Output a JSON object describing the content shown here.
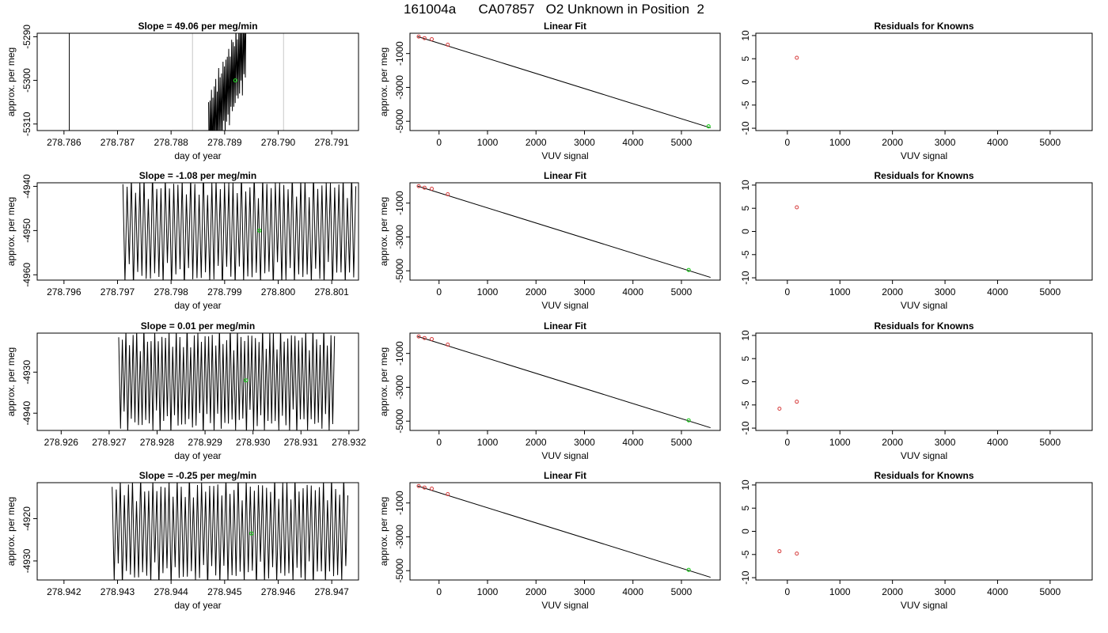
{
  "figure": {
    "title": "161004a      CA07857   O2 Unknown in Position  2",
    "colors": {
      "trace": "#000000",
      "grid_vline": "#c8c8c8",
      "known_point": "#d63c3c",
      "unknown_point": "#22cc22",
      "frame": "#000000"
    }
  },
  "chart_data": [
    {
      "type": "line",
      "title": "Slope =  49.06  per meg/min",
      "xlabel": "day of year",
      "ylabel": "approx. per meg",
      "xlim": [
        278.7855,
        278.7915
      ],
      "ylim": [
        -5311.5,
        -5289.2
      ],
      "xticks": [
        278.786,
        278.787,
        278.788,
        278.789,
        278.79,
        278.791
      ],
      "xtick_labels": [
        "278.786",
        "278.787",
        "278.788",
        "278.789",
        "278.790",
        "278.791"
      ],
      "yticks": [
        -5310,
        -5300,
        -5290
      ],
      "ytick_labels": [
        "-5310",
        "-5300",
        "-5290"
      ],
      "vlines_black": [
        278.7861
      ],
      "vlines_gray": [
        278.7884,
        278.7901
      ],
      "signal": {
        "x_start": 278.7887,
        "x_end": 278.7894,
        "center": -5302,
        "amp": 10,
        "cycles": 26,
        "slope": 30000
      },
      "marker": {
        "x": 278.7892,
        "y": -5300
      }
    },
    {
      "type": "scatter",
      "title": "Linear Fit",
      "xlabel": "VUV signal",
      "ylabel": "approx. per meg",
      "xlim": [
        -600,
        5800
      ],
      "ylim": [
        -5550,
        200
      ],
      "xticks": [
        0,
        1000,
        2000,
        3000,
        4000,
        5000
      ],
      "xtick_labels": [
        "0",
        "1000",
        "2000",
        "3000",
        "4000",
        "5000"
      ],
      "yticks": [
        -5000,
        -3000,
        -1000
      ],
      "ytick_labels": [
        "-5000",
        "-3000",
        "-1000"
      ],
      "fit_line": [
        [
          -440,
          0
        ],
        [
          5600,
          -5390
        ]
      ],
      "knowns": [
        [
          -420,
          0
        ],
        [
          -300,
          -90
        ],
        [
          -150,
          -150
        ],
        [
          180,
          -480
        ]
      ],
      "unknown": [
        5560,
        -5300
      ]
    },
    {
      "type": "scatter",
      "title": "Residuals for Knowns",
      "xlabel": "VUV signal",
      "ylabel": "",
      "xlim": [
        -600,
        5800
      ],
      "ylim": [
        -10.5,
        10.5
      ],
      "xticks": [
        0,
        1000,
        2000,
        3000,
        4000,
        5000
      ],
      "xtick_labels": [
        "0",
        "1000",
        "2000",
        "3000",
        "4000",
        "5000"
      ],
      "yticks": [
        -10,
        -5,
        0,
        5,
        10
      ],
      "ytick_labels": [
        "-10",
        "-5",
        "0",
        "5",
        "10"
      ],
      "points": [
        [
          180,
          5.2
        ]
      ]
    },
    {
      "type": "line",
      "title": "Slope =  -1.08  per meg/min",
      "xlabel": "day of year",
      "ylabel": "approx. per meg",
      "xlim": [
        278.7955,
        278.8015
      ],
      "ylim": [
        -4961.2,
        -4939.2
      ],
      "xticks": [
        278.796,
        278.797,
        278.798,
        278.799,
        278.8,
        278.801
      ],
      "xtick_labels": [
        "278.796",
        "278.797",
        "278.798",
        "278.799",
        "278.800",
        "278.801"
      ],
      "yticks": [
        -4960,
        -4950,
        -4940
      ],
      "ytick_labels": [
        "-4960",
        "-4950",
        "-4940"
      ],
      "vlines_black": [],
      "vlines_gray": [],
      "signal": {
        "x_start": 278.7971,
        "x_end": 278.80145,
        "center": -4950,
        "amp": 14,
        "cycles": 55,
        "slope": 0
      },
      "marker": {
        "x": 278.79965,
        "y": -4950
      }
    },
    {
      "type": "scatter",
      "title": "Linear Fit",
      "xlabel": "VUV signal",
      "ylabel": "approx. per meg",
      "xlim": [
        -600,
        5800
      ],
      "ylim": [
        -5550,
        200
      ],
      "xticks": [
        0,
        1000,
        2000,
        3000,
        4000,
        5000
      ],
      "xtick_labels": [
        "0",
        "1000",
        "2000",
        "3000",
        "4000",
        "5000"
      ],
      "yticks": [
        -5000,
        -3000,
        -1000
      ],
      "ytick_labels": [
        "-5000",
        "-3000",
        "-1000"
      ],
      "fit_line": [
        [
          -440,
          0
        ],
        [
          5600,
          -5390
        ]
      ],
      "knowns": [
        [
          -420,
          0
        ],
        [
          -300,
          -90
        ],
        [
          -150,
          -150
        ],
        [
          180,
          -480
        ]
      ],
      "unknown": [
        5150,
        -4950
      ]
    },
    {
      "type": "scatter",
      "title": "Residuals for Knowns",
      "xlabel": "VUV signal",
      "ylabel": "",
      "xlim": [
        -600,
        5800
      ],
      "ylim": [
        -10.5,
        10.5
      ],
      "xticks": [
        0,
        1000,
        2000,
        3000,
        4000,
        5000
      ],
      "xtick_labels": [
        "0",
        "1000",
        "2000",
        "3000",
        "4000",
        "5000"
      ],
      "yticks": [
        -10,
        -5,
        0,
        5,
        10
      ],
      "ytick_labels": [
        "-10",
        "-5",
        "0",
        "5",
        "10"
      ],
      "points": [
        [
          180,
          5.2
        ]
      ]
    },
    {
      "type": "line",
      "title": "Slope =  0.01  per meg/min",
      "xlabel": "day of year",
      "ylabel": "approx. per meg",
      "xlim": [
        278.9255,
        278.9322
      ],
      "ylim": [
        -4944.2,
        -4920.5
      ],
      "xticks": [
        278.926,
        278.927,
        278.928,
        278.929,
        278.93,
        278.931,
        278.932
      ],
      "xtick_labels": [
        "278.926",
        "278.927",
        "278.928",
        "278.929",
        "278.930",
        "278.931",
        "278.932"
      ],
      "yticks": [
        -4940,
        -4930
      ],
      "ytick_labels": [
        "-4940",
        "-4930"
      ],
      "vlines_black": [],
      "vlines_gray": [],
      "signal": {
        "x_start": 278.9272,
        "x_end": 278.9317,
        "center": -4932,
        "amp": 14,
        "cycles": 60,
        "slope": 0
      },
      "marker": {
        "x": 278.92985,
        "y": -4932
      }
    },
    {
      "type": "scatter",
      "title": "Linear Fit",
      "xlabel": "VUV signal",
      "ylabel": "approx. per meg",
      "xlim": [
        -600,
        5800
      ],
      "ylim": [
        -5550,
        200
      ],
      "xticks": [
        0,
        1000,
        2000,
        3000,
        4000,
        5000
      ],
      "xtick_labels": [
        "0",
        "1000",
        "2000",
        "3000",
        "4000",
        "5000"
      ],
      "yticks": [
        -5000,
        -3000,
        -1000
      ],
      "ytick_labels": [
        "-5000",
        "-3000",
        "-1000"
      ],
      "fit_line": [
        [
          -440,
          0
        ],
        [
          5600,
          -5390
        ]
      ],
      "knowns": [
        [
          -420,
          0
        ],
        [
          -300,
          -90
        ],
        [
          -150,
          -150
        ],
        [
          180,
          -480
        ]
      ],
      "unknown": [
        5150,
        -4950
      ]
    },
    {
      "type": "scatter",
      "title": "Residuals for Knowns",
      "xlabel": "VUV signal",
      "ylabel": "",
      "xlim": [
        -600,
        5800
      ],
      "ylim": [
        -10.5,
        10.5
      ],
      "xticks": [
        0,
        1000,
        2000,
        3000,
        4000,
        5000
      ],
      "xtick_labels": [
        "0",
        "1000",
        "2000",
        "3000",
        "4000",
        "5000"
      ],
      "yticks": [
        -10,
        -5,
        0,
        5,
        10
      ],
      "ytick_labels": [
        "-10",
        "-5",
        "0",
        "5",
        "10"
      ],
      "points": [
        [
          -150,
          -5.8
        ],
        [
          180,
          -4.3
        ]
      ]
    },
    {
      "type": "line",
      "title": "Slope =  -0.25  per meg/min",
      "xlabel": "day of year",
      "ylabel": "approx. per meg",
      "xlim": [
        278.9415,
        278.9475
      ],
      "ylim": [
        -4934.5,
        -4911.5
      ],
      "xticks": [
        278.942,
        278.943,
        278.944,
        278.945,
        278.946,
        278.947
      ],
      "xtick_labels": [
        "278.942",
        "278.943",
        "278.944",
        "278.945",
        "278.946",
        "278.947"
      ],
      "yticks": [
        -4930,
        -4920
      ],
      "ytick_labels": [
        "-4930",
        "-4920"
      ],
      "vlines_black": [],
      "vlines_gray": [],
      "signal": {
        "x_start": 278.9429,
        "x_end": 278.9473,
        "center": -4923,
        "amp": 14,
        "cycles": 58,
        "slope": 0
      },
      "marker": {
        "x": 278.9455,
        "y": -4923.5
      }
    },
    {
      "type": "scatter",
      "title": "Linear Fit",
      "xlabel": "VUV signal",
      "ylabel": "approx. per meg",
      "xlim": [
        -600,
        5800
      ],
      "ylim": [
        -5550,
        200
      ],
      "xticks": [
        0,
        1000,
        2000,
        3000,
        4000,
        5000
      ],
      "xtick_labels": [
        "0",
        "1000",
        "2000",
        "3000",
        "4000",
        "5000"
      ],
      "yticks": [
        -5000,
        -3000,
        -1000
      ],
      "ytick_labels": [
        "-5000",
        "-3000",
        "-1000"
      ],
      "fit_line": [
        [
          -440,
          0
        ],
        [
          5600,
          -5390
        ]
      ],
      "knowns": [
        [
          -420,
          0
        ],
        [
          -300,
          -90
        ],
        [
          -150,
          -150
        ],
        [
          180,
          -480
        ]
      ],
      "unknown": [
        5150,
        -4950
      ]
    },
    {
      "type": "scatter",
      "title": "Residuals for Knowns",
      "xlabel": "VUV signal",
      "ylabel": "",
      "xlim": [
        -600,
        5800
      ],
      "ylim": [
        -10.5,
        10.5
      ],
      "xticks": [
        0,
        1000,
        2000,
        3000,
        4000,
        5000
      ],
      "xtick_labels": [
        "0",
        "1000",
        "2000",
        "3000",
        "4000",
        "5000"
      ],
      "yticks": [
        -10,
        -5,
        0,
        5,
        10
      ],
      "ytick_labels": [
        "-10",
        "-5",
        "0",
        "5",
        "10"
      ],
      "points": [
        [
          -150,
          -4.3
        ],
        [
          180,
          -4.8
        ]
      ]
    }
  ]
}
